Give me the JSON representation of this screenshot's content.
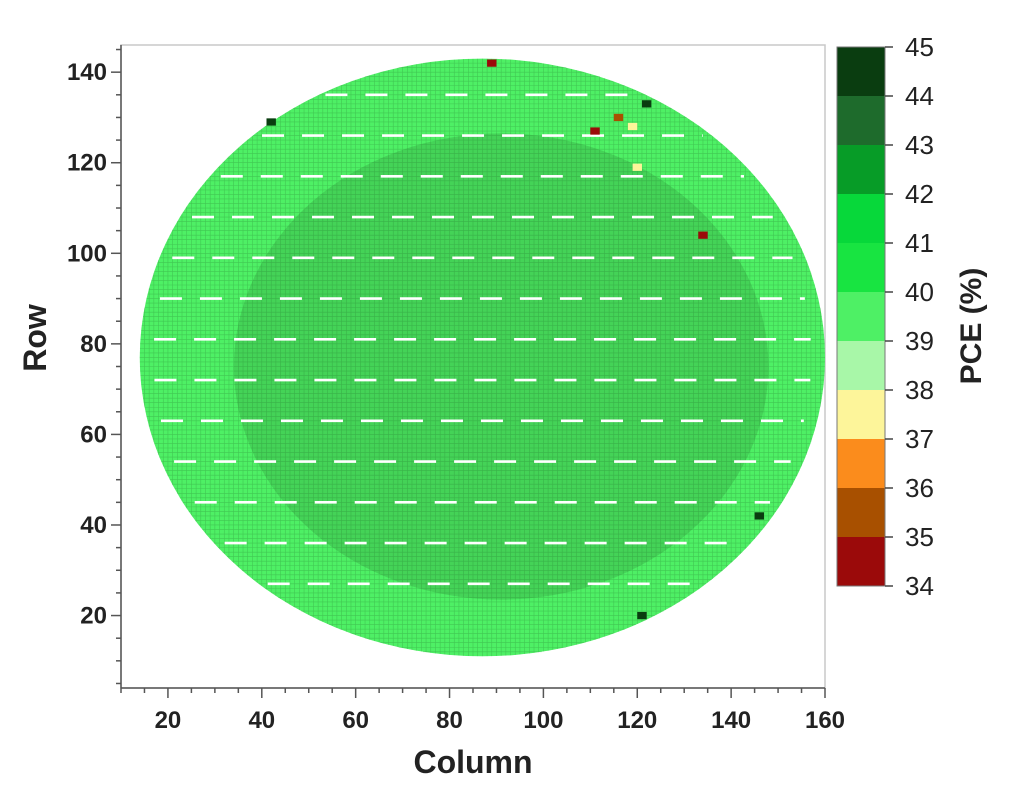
{
  "chart_data": {
    "type": "heatmap",
    "title": "",
    "xlabel": "Column",
    "ylabel": "Row",
    "xlim": [
      10,
      160
    ],
    "ylim": [
      4,
      146
    ],
    "x_ticks": [
      20,
      40,
      60,
      80,
      100,
      120,
      140,
      160
    ],
    "y_ticks": [
      20,
      40,
      60,
      80,
      100,
      120,
      140
    ],
    "wafer": {
      "center_column": 87,
      "center_row": 77,
      "radius_columns": 73,
      "radius_rows": 66,
      "column_range": [
        13,
        160
      ],
      "row_range": [
        11,
        143
      ],
      "typical_pce_percent": [
        39,
        41
      ],
      "street_rows": [
        27,
        36,
        45,
        54,
        63,
        72,
        81,
        90,
        99,
        108,
        117,
        126,
        135
      ]
    },
    "outliers": [
      {
        "column": 89,
        "row": 142,
        "pce": 34.5
      },
      {
        "column": 111,
        "row": 127,
        "pce": 34.5
      },
      {
        "column": 116,
        "row": 130,
        "pce": 35.0
      },
      {
        "column": 119,
        "row": 128,
        "pce": 37.5
      },
      {
        "column": 120,
        "row": 119,
        "pce": 37.5
      },
      {
        "column": 134,
        "row": 104,
        "pce": 34.5
      },
      {
        "column": 122,
        "row": 133,
        "pce": 44.8
      },
      {
        "column": 42,
        "row": 129,
        "pce": 44.8
      },
      {
        "column": 146,
        "row": 42,
        "pce": 44.8
      },
      {
        "column": 121,
        "row": 20,
        "pce": 44.8
      }
    ],
    "colorbar": {
      "label": "PCE (%)",
      "range": [
        34,
        45
      ],
      "ticks": [
        45,
        44,
        43,
        42,
        41,
        40,
        39,
        38,
        37,
        36,
        35,
        34
      ],
      "bands": [
        {
          "from": 34,
          "to": 35,
          "color": "#9b0a0a"
        },
        {
          "from": 35,
          "to": 36,
          "color": "#a85000"
        },
        {
          "from": 36,
          "to": 37,
          "color": "#fb8c1c"
        },
        {
          "from": 37,
          "to": 38,
          "color": "#fdf59a"
        },
        {
          "from": 38,
          "to": 39,
          "color": "#a8f7a8"
        },
        {
          "from": 39,
          "to": 40,
          "color": "#4ef065"
        },
        {
          "from": 40,
          "to": 41,
          "color": "#18e441"
        },
        {
          "from": 41,
          "to": 42,
          "color": "#07d83a"
        },
        {
          "from": 42,
          "to": 43,
          "color": "#079c27"
        },
        {
          "from": 43,
          "to": 44,
          "color": "#1e6b2c"
        },
        {
          "from": 44,
          "to": 45,
          "color": "#0a3d10"
        }
      ]
    }
  }
}
